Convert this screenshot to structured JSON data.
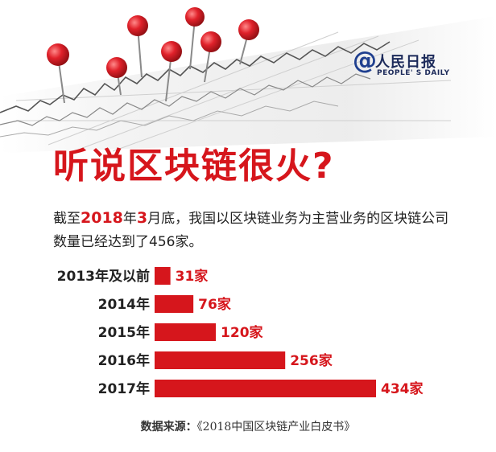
{
  "header": {
    "logo": {
      "symbol": "@",
      "name": "人民日报",
      "name_en": "PEOPLE' S DAILY"
    },
    "title": "听说区块链很火?",
    "subtitle": {
      "p1": "截至",
      "year": "2018",
      "p2": "年",
      "month": "3",
      "p3": "月底，我国以区块链业务为主营业务的区块链公司数量已经达到了456家。"
    }
  },
  "chart_data": {
    "type": "bar",
    "orientation": "horizontal",
    "categories": [
      "2013年及以前",
      "2014年",
      "2015年",
      "2016年",
      "2017年"
    ],
    "values": [
      31,
      76,
      120,
      256,
      434
    ],
    "value_labels": [
      "31家",
      "76家",
      "120家",
      "256家",
      "434家"
    ],
    "bar_color": "#d6161c",
    "label_color": "#d6161c"
  },
  "footer": {
    "source_label": "数据来源：",
    "source_title": "《2018中国区块链产业白皮书》"
  },
  "colors": {
    "accent": "#d6161c",
    "brand": "#1f3f8f"
  }
}
